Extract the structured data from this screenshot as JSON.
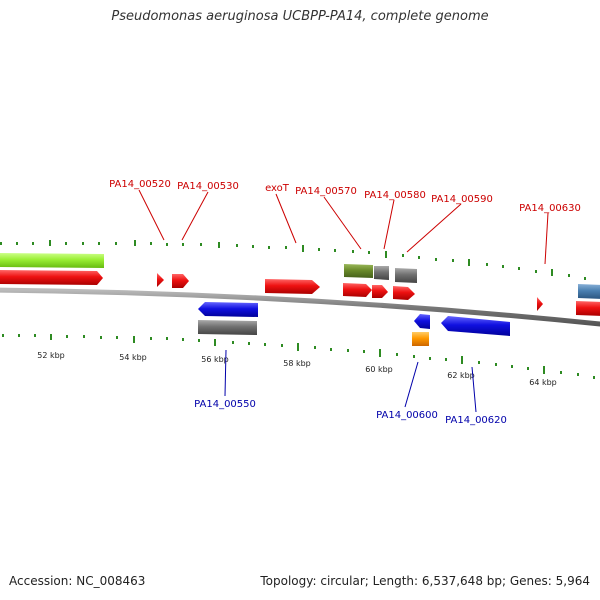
{
  "title": "Pseudomonas aeruginosa UCBPP-PA14, complete genome",
  "footer": {
    "accession": "Accession: NC_008463",
    "summary": "Topology: circular; Length: 6,537,648 bp; Genes: 5,964"
  },
  "colors": {
    "forward_label": "#cc0000",
    "reverse_label": "#0000aa",
    "tick": "#2e8b22",
    "backbone": "#888888",
    "red": "#ee1111",
    "blue": "#1010e0",
    "gray": "#707070",
    "olive": "#6a8a2a",
    "lime": "#99ee33",
    "orange": "#ff9900",
    "steelblue": "#4a7fb0"
  },
  "tick_labels": [
    {
      "kbp": 52,
      "text": "52 kbp"
    },
    {
      "kbp": 54,
      "text": "54 kbp"
    },
    {
      "kbp": 56,
      "text": "56 kbp"
    },
    {
      "kbp": 58,
      "text": "58 kbp"
    },
    {
      "kbp": 60,
      "text": "60 kbp"
    },
    {
      "kbp": 62,
      "text": "62 kbp"
    },
    {
      "kbp": 64,
      "text": "64 kbp"
    }
  ],
  "forward_labels": [
    "PA14_00520",
    "PA14_00530",
    "exoT",
    "PA14_00570",
    "PA14_00580",
    "PA14_00590",
    "PA14_00630"
  ],
  "reverse_labels": [
    "PA14_00550",
    "PA14_00600",
    "PA14_00620"
  ]
}
